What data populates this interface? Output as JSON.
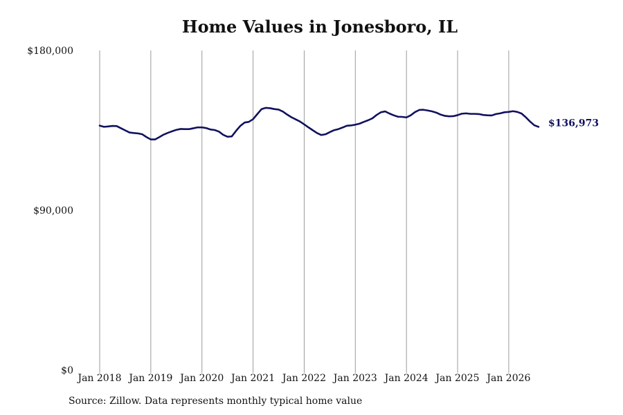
{
  "chart_data": {
    "type": "line",
    "title": "Home Values in Jonesboro, IL",
    "source": "Source: Zillow. Data represents monthly typical home value",
    "xlabel": "",
    "ylabel": "",
    "x_ticks": [
      "Jan 2018",
      "Jan 2019",
      "Jan 2020",
      "Jan 2021",
      "Jan 2022",
      "Jan 2023",
      "Jan 2024",
      "Jan 2025",
      "Jan 2026"
    ],
    "y_ticks": [
      {
        "value": 0,
        "label": "$0"
      },
      {
        "value": 90000,
        "label": "$90,000"
      },
      {
        "value": 180000,
        "label": "$180,000"
      }
    ],
    "xlim": [
      "2018-01",
      "2026-08"
    ],
    "ylim": [
      0,
      180000
    ],
    "grid": "vertical",
    "line_color": "#11115e",
    "end_label": "$136,973",
    "series": [
      {
        "x": [
          "2018-01",
          "2018-02",
          "2018-03",
          "2018-04",
          "2018-05",
          "2018-06",
          "2018-07",
          "2018-08",
          "2018-09",
          "2018-10",
          "2018-11",
          "2018-12",
          "2019-01",
          "2019-02",
          "2019-03",
          "2019-04",
          "2019-05",
          "2019-06",
          "2019-07",
          "2019-08",
          "2019-09",
          "2019-10",
          "2019-11",
          "2019-12",
          "2020-01",
          "2020-02",
          "2020-03",
          "2020-04",
          "2020-05",
          "2020-06",
          "2020-07",
          "2020-08",
          "2020-09",
          "2020-10",
          "2020-11",
          "2020-12",
          "2021-01",
          "2021-02",
          "2021-03",
          "2021-04",
          "2021-05",
          "2021-06",
          "2021-07",
          "2021-08",
          "2021-09",
          "2021-10",
          "2021-11",
          "2021-12",
          "2022-01",
          "2022-02",
          "2022-03",
          "2022-04",
          "2022-05",
          "2022-06",
          "2022-07",
          "2022-08",
          "2022-09",
          "2022-10",
          "2022-11",
          "2022-12",
          "2023-01",
          "2023-02",
          "2023-03",
          "2023-04",
          "2023-05",
          "2023-06",
          "2023-07",
          "2023-08",
          "2023-09",
          "2023-10",
          "2023-11",
          "2023-12",
          "2024-01",
          "2024-02",
          "2024-03",
          "2024-04",
          "2024-05",
          "2024-06",
          "2024-07",
          "2024-08",
          "2024-09",
          "2024-10",
          "2024-11",
          "2024-12",
          "2025-01",
          "2025-02",
          "2025-03",
          "2025-04",
          "2025-05",
          "2025-06",
          "2025-07",
          "2025-08",
          "2025-09",
          "2025-10",
          "2025-11",
          "2025-12",
          "2026-01",
          "2026-02",
          "2026-03",
          "2026-04",
          "2026-05",
          "2026-06",
          "2026-07",
          "2026-08"
        ],
        "values": [
          137700,
          137000,
          137200,
          137500,
          137400,
          136200,
          135000,
          133800,
          133500,
          133300,
          132800,
          131200,
          129900,
          129900,
          131200,
          132600,
          133600,
          134500,
          135300,
          135800,
          135700,
          135700,
          136200,
          136700,
          136700,
          136300,
          135500,
          135200,
          134300,
          132500,
          131400,
          131600,
          134700,
          137500,
          139400,
          139800,
          141300,
          144200,
          147000,
          147700,
          147500,
          147000,
          146700,
          145600,
          143900,
          142400,
          141200,
          140000,
          138400,
          136700,
          135100,
          133500,
          132400,
          132800,
          134000,
          135100,
          135700,
          136600,
          137600,
          137800,
          138200,
          138800,
          139800,
          140700,
          141800,
          143700,
          145200,
          145700,
          144500,
          143500,
          142700,
          142600,
          142300,
          143500,
          145300,
          146500,
          146600,
          146200,
          145700,
          145000,
          143900,
          143200,
          142900,
          143000,
          143600,
          144400,
          144600,
          144300,
          144300,
          144200,
          143700,
          143500,
          143400,
          144200,
          144600,
          145200,
          145400,
          145800,
          145400,
          144500,
          142400,
          140000,
          137900,
          136973
        ]
      }
    ]
  }
}
